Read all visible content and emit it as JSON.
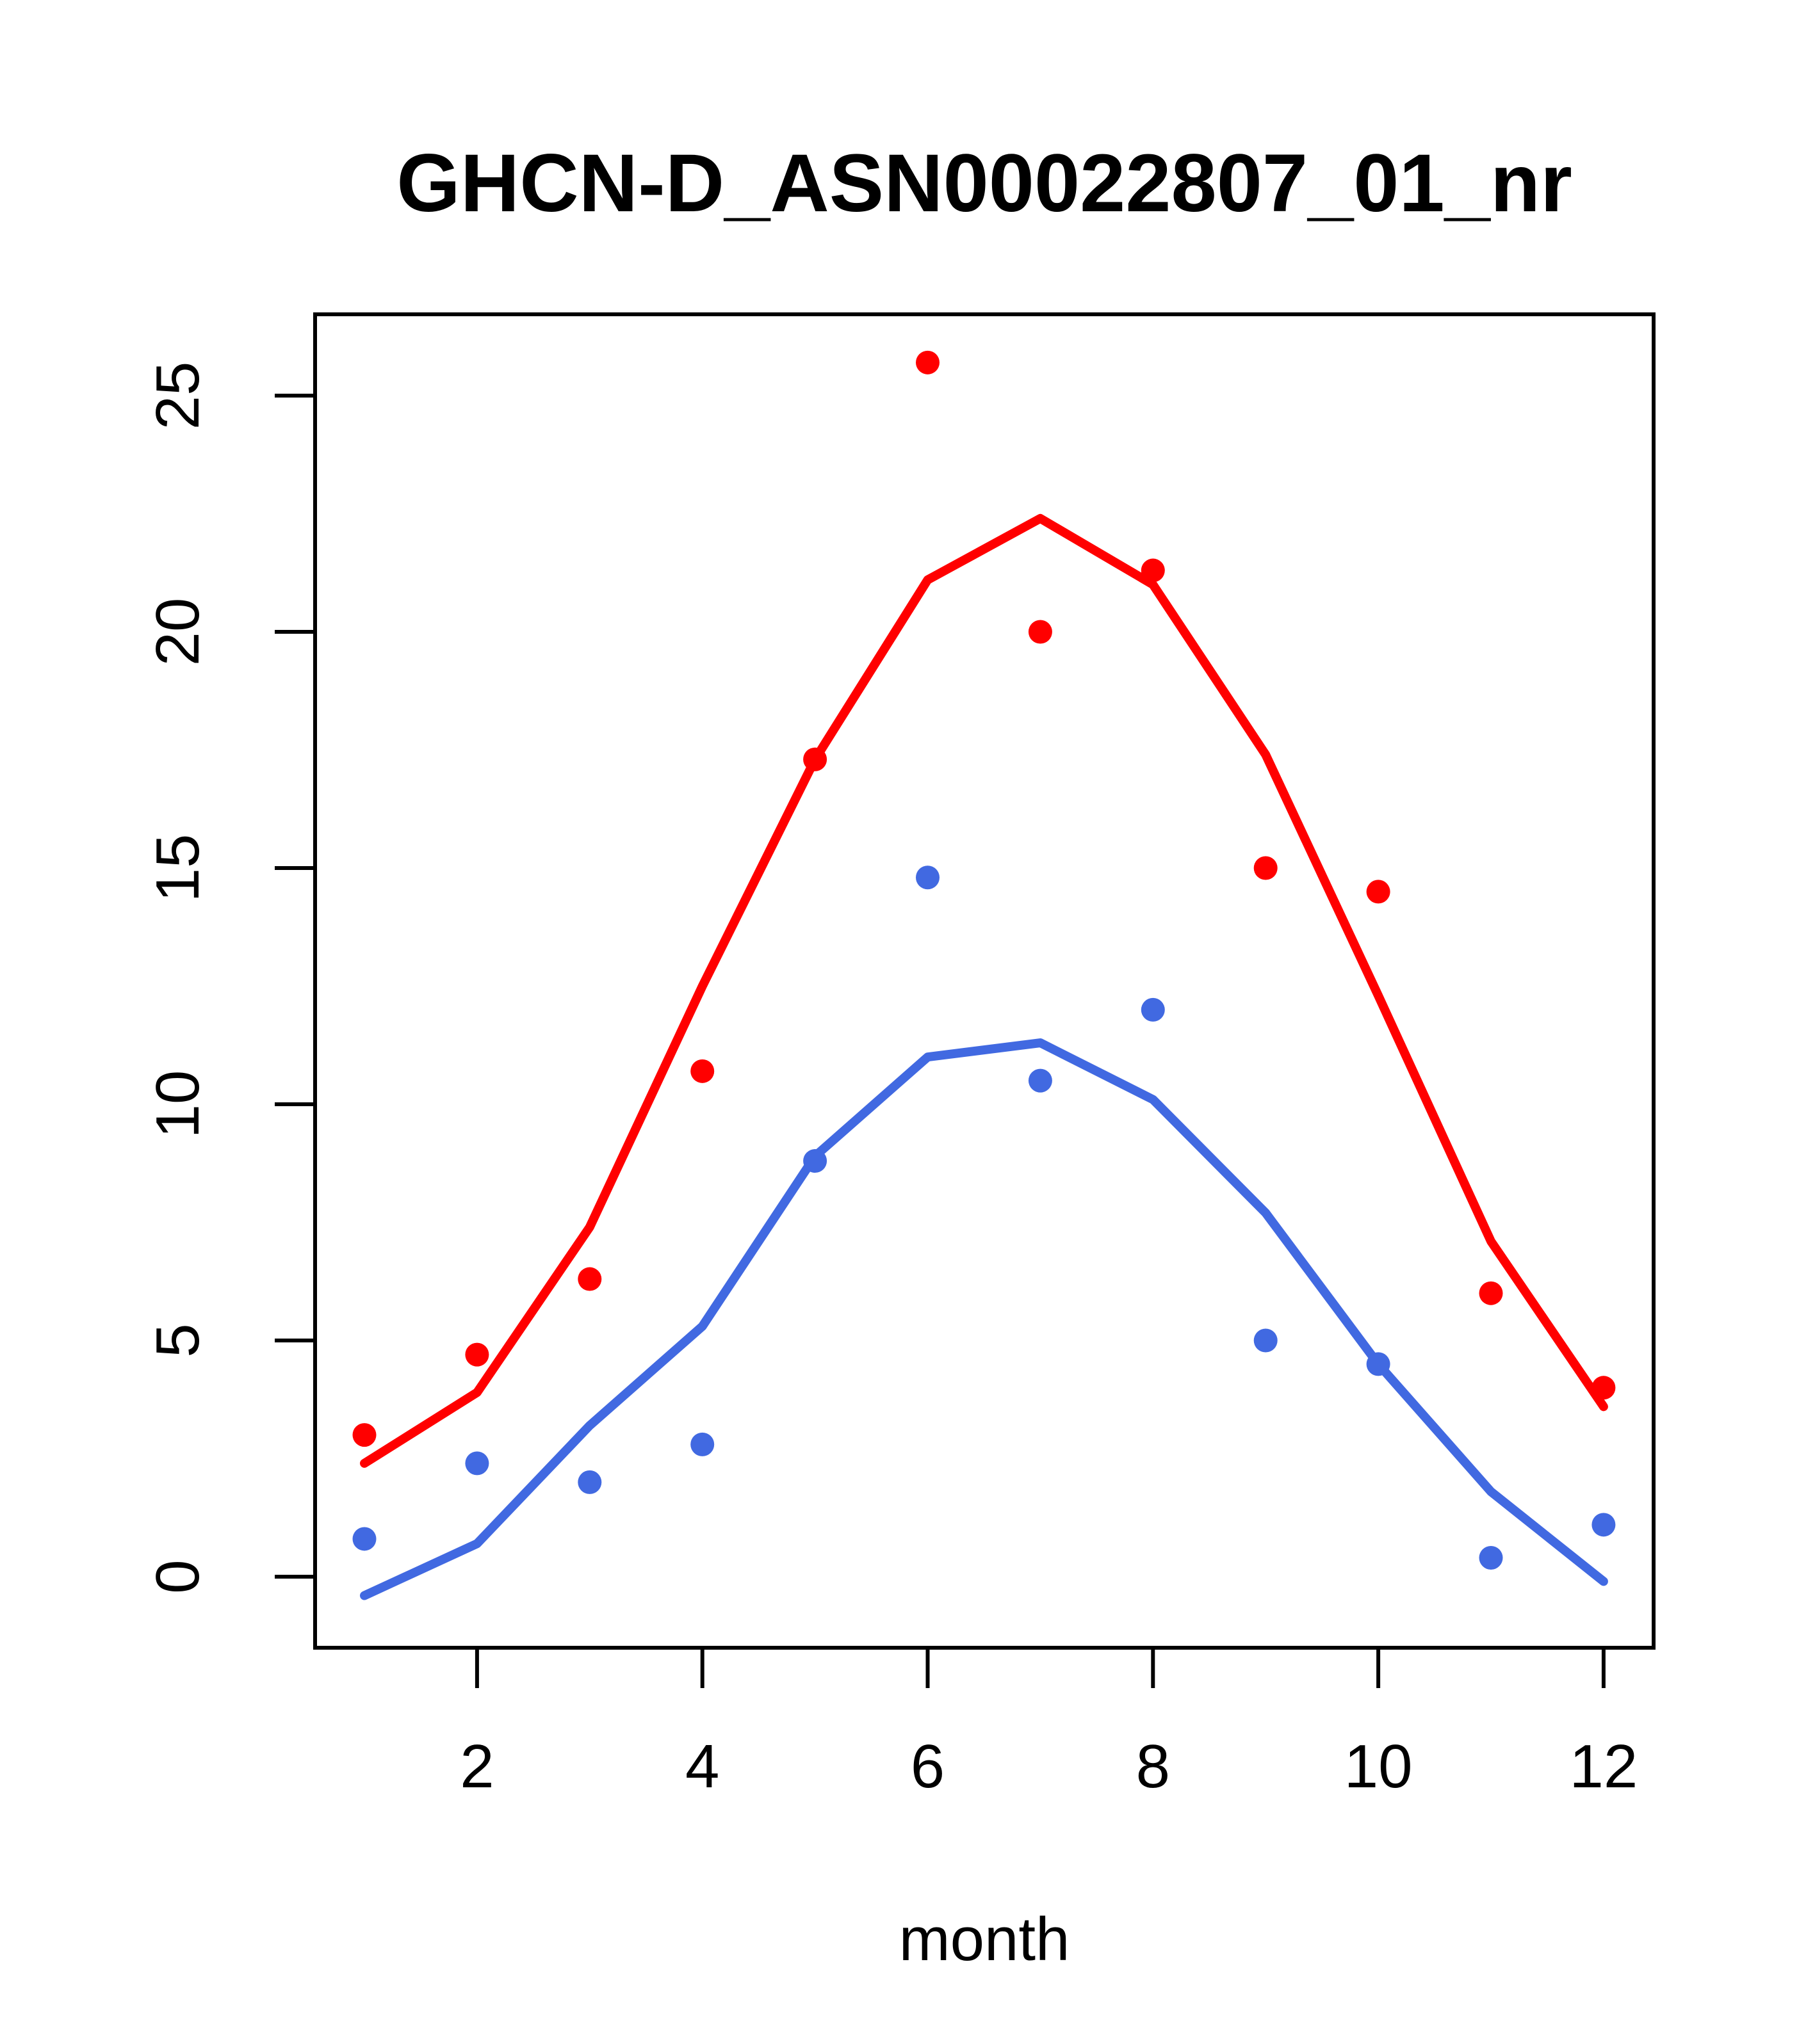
{
  "title": "GHCN-D_ASN00022807_01_nr",
  "chart_data": {
    "type": "scatter",
    "title": "GHCN-D_ASN00022807_01_nr",
    "xlabel": "month",
    "ylabel": "",
    "x": [
      1,
      2,
      3,
      4,
      5,
      6,
      7,
      8,
      9,
      10,
      11,
      12
    ],
    "x_tick_labels": [
      "2",
      "4",
      "6",
      "8",
      "10",
      "12"
    ],
    "x_tick_values": [
      2,
      4,
      6,
      8,
      10,
      12
    ],
    "y_tick_labels": [
      "0",
      "5",
      "10",
      "15",
      "20",
      "25"
    ],
    "y_tick_values": [
      0,
      5,
      10,
      15,
      20,
      25
    ],
    "xlim": [
      0.56,
      12.44
    ],
    "ylim": [
      -1.5,
      26.7
    ],
    "grid": false,
    "legend": "none",
    "colors": {
      "red_series": "#ff0000",
      "blue_series": "#4169e1",
      "axis": "#000000",
      "background": "#ffffff"
    },
    "series": [
      {
        "name": "red-points",
        "kind": "points",
        "color_key": "red_series",
        "values": [
          3.0,
          4.7,
          6.3,
          10.7,
          17.3,
          25.7,
          20.0,
          21.3,
          15.0,
          14.5,
          6.0,
          4.0
        ]
      },
      {
        "name": "red-line",
        "kind": "line",
        "color_key": "red_series",
        "values": [
          2.4,
          3.9,
          7.4,
          12.5,
          17.3,
          21.1,
          22.4,
          21.0,
          17.4,
          12.3,
          7.1,
          3.6
        ]
      },
      {
        "name": "blue-points",
        "kind": "points",
        "color_key": "blue_series",
        "values": [
          0.8,
          2.4,
          2.0,
          2.8,
          8.8,
          14.8,
          10.5,
          12.0,
          5.0,
          4.5,
          0.4,
          1.1
        ]
      },
      {
        "name": "blue-line",
        "kind": "line",
        "color_key": "blue_series",
        "values": [
          -0.4,
          0.7,
          3.2,
          5.3,
          8.9,
          11.0,
          11.3,
          10.1,
          7.7,
          4.5,
          1.8,
          -0.1
        ]
      }
    ]
  }
}
